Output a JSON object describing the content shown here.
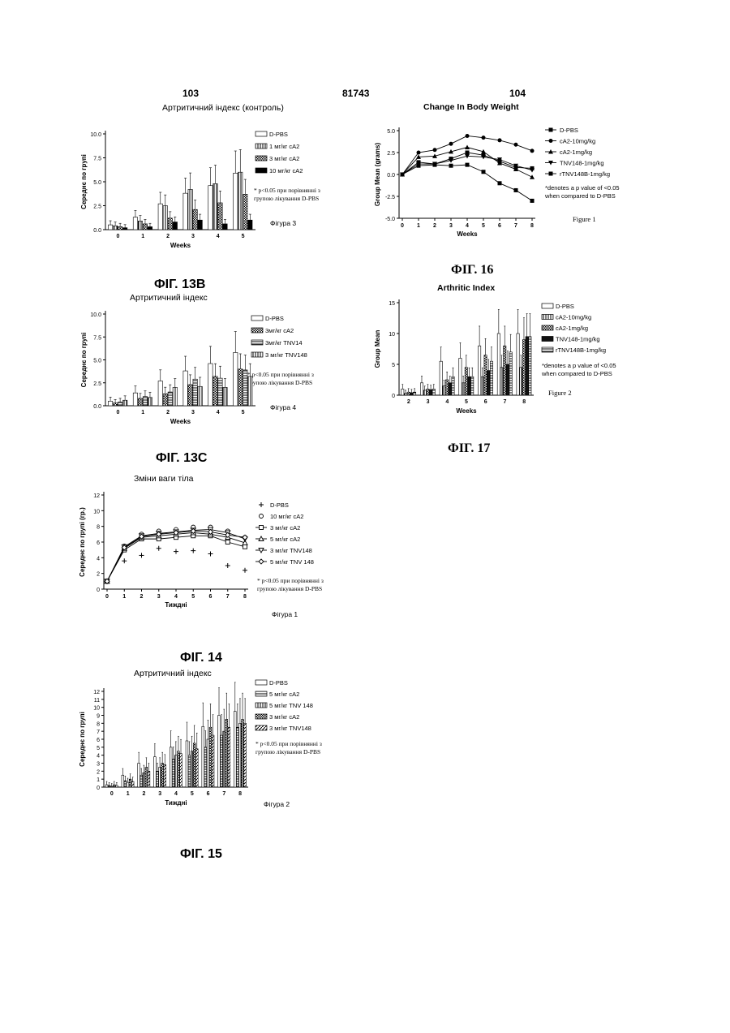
{
  "page": {
    "left_number": "103",
    "center_number": "81743",
    "right_number": "104"
  },
  "figures": [
    {
      "id": "fig13b",
      "caption": "ФІГ. 13B",
      "title": "Артритичний індекс (контроль)",
      "sub_label": "Фігура 3",
      "note": [
        "* p<0.05 при порівнянні з",
        "групою лікування D-PBS"
      ],
      "chart_data": {
        "type": "bar",
        "title": "Артритичний індекс (контроль)",
        "xlabel": "Weeks",
        "ylabel": "Середнє по групі",
        "ylim": [
          0,
          10
        ],
        "yticks": [
          "0.0",
          "2.5",
          "5.0",
          "7.5",
          "10.0"
        ],
        "categories": [
          "0",
          "1",
          "2",
          "3",
          "4",
          "5"
        ],
        "series": [
          {
            "name": "D-PBS",
            "values": [
              0.5,
              1.3,
              2.7,
              3.8,
              4.6,
              5.9
            ]
          },
          {
            "name": "1 мг/кг cA2",
            "values": [
              0.4,
              0.9,
              2.5,
              4.2,
              4.8,
              6.0
            ]
          },
          {
            "name": "3 мг/кг cA2",
            "values": [
              0.3,
              0.6,
              1.2,
              2.1,
              2.8,
              3.7
            ]
          },
          {
            "name": "10 мг/кг cA2",
            "values": [
              0.2,
              0.3,
              0.8,
              1.0,
              0.6,
              1.0
            ]
          }
        ]
      }
    },
    {
      "id": "fig13c",
      "caption": "ФІГ. 13C",
      "title": "Артритичний індекс",
      "sub_label": "Фігура 4",
      "note": [
        "* p<0.05 при порівнянні з",
        "групою лікування D-PBS"
      ],
      "chart_data": {
        "type": "bar",
        "title": "Артритичний індекс",
        "xlabel": "Weeks",
        "ylabel": "Середнє по групі",
        "ylim": [
          0,
          10
        ],
        "yticks": [
          "0.0",
          "2.5",
          "5.0",
          "7.5",
          "10.0"
        ],
        "categories": [
          "0",
          "1",
          "2",
          "3",
          "4",
          "5"
        ],
        "series": [
          {
            "name": "D-PBS",
            "values": [
              0.5,
              1.4,
              2.7,
              3.8,
              4.6,
              5.8
            ]
          },
          {
            "name": "3мг/кг cA2",
            "values": [
              0.3,
              0.8,
              1.3,
              2.3,
              3.2,
              4.0
            ]
          },
          {
            "name": "3мг/кг TNV14",
            "values": [
              0.4,
              1.0,
              1.5,
              2.9,
              3.0,
              3.9
            ]
          },
          {
            "name": "3 мг/кг TNV148",
            "values": [
              0.6,
              0.9,
              2.0,
              2.1,
              2.0,
              3.2
            ]
          }
        ]
      }
    },
    {
      "id": "fig14",
      "caption": "ФІГ. 14",
      "title": "Зміни ваги тіла",
      "sub_label": "Фігура 1",
      "note": [
        "* p<0.05 при порівнянні з",
        "групою лікування D-PBS"
      ],
      "chart_data": {
        "type": "line",
        "title": "Зміни ваги тіла",
        "xlabel": "Тиждні",
        "ylabel": "Середнє по групі (гр.)",
        "ylim": [
          0,
          12
        ],
        "yticks": [
          "0",
          "2",
          "4",
          "6",
          "8",
          "10",
          "12"
        ],
        "x": [
          0,
          1,
          2,
          3,
          4,
          5,
          6,
          7,
          8
        ],
        "series": [
          {
            "name": "D-PBS",
            "values": [
              1.0,
              3.6,
              4.3,
              5.2,
              4.8,
              4.9,
              4.5,
              3.0,
              2.4
            ]
          },
          {
            "name": "10 мг/кг cA2",
            "values": [
              1.0,
              5.5,
              7.0,
              7.4,
              7.6,
              7.9,
              7.9,
              7.4,
              6.6
            ]
          },
          {
            "name": "3 мг/кг cA2",
            "values": [
              1.0,
              5.0,
              6.4,
              6.4,
              6.6,
              6.8,
              6.8,
              6.0,
              5.4
            ]
          },
          {
            "name": "5 мг/кг cA2",
            "values": [
              1.0,
              5.2,
              6.6,
              6.8,
              7.0,
              7.2,
              7.0,
              6.6,
              5.9
            ]
          },
          {
            "name": "3 мг/кг TNV148",
            "values": [
              1.0,
              5.4,
              6.8,
              7.1,
              7.3,
              7.5,
              7.6,
              7.2,
              6.4
            ]
          },
          {
            "name": "5 мг/кг TNV 148",
            "values": [
              1.0,
              5.3,
              6.7,
              7.0,
              7.2,
              7.4,
              7.3,
              6.9,
              6.6
            ]
          }
        ]
      }
    },
    {
      "id": "fig15",
      "caption": "ФІГ. 15",
      "title": "Артритичний індекс",
      "sub_label": "Фігура 2",
      "note": [
        "* p<0.05 при порівнянні з",
        "групою лікування D-PBS"
      ],
      "chart_data": {
        "type": "bar",
        "title": "Артритичний індекс",
        "xlabel": "Тиждні",
        "ylabel": "Середнє по групі",
        "ylim": [
          0,
          12
        ],
        "yticks": [
          "0",
          "1",
          "2",
          "3",
          "4",
          "5",
          "6",
          "7",
          "8",
          "9",
          "10",
          "11",
          "12"
        ],
        "categories": [
          "0",
          "1",
          "2",
          "3",
          "4",
          "5",
          "6",
          "7",
          "8"
        ],
        "series": [
          {
            "name": "D-PBS",
            "values": [
              0.3,
              1.5,
              3.0,
              3.8,
              5.0,
              5.8,
              7.6,
              9.0,
              9.5
            ]
          },
          {
            "name": "5 мг/кг cA2",
            "values": [
              0.2,
              0.8,
              1.5,
              2.0,
              3.5,
              4.0,
              5.0,
              6.5,
              7.5
            ]
          },
          {
            "name": "5 мг/кг TNV 148",
            "values": [
              0.1,
              0.6,
              1.8,
              2.5,
              4.0,
              4.5,
              6.0,
              7.0,
              8.0
            ]
          },
          {
            "name": "3 мг/кг cA2",
            "values": [
              0.3,
              1.0,
              2.5,
              3.0,
              4.5,
              5.5,
              7.5,
              8.5,
              8.5
            ]
          },
          {
            "name": "3 мг/кг TNV148",
            "values": [
              0.2,
              0.7,
              2.0,
              2.8,
              4.2,
              4.8,
              6.5,
              7.5,
              8.0
            ]
          }
        ]
      }
    },
    {
      "id": "fig16",
      "caption": "ФІГ. 16",
      "title": "Change In Body Weight",
      "sub_label": "Figure 1",
      "note": [
        "*denotes a p value of <0.05",
        "when compared to D-PBS"
      ],
      "chart_data": {
        "type": "line",
        "title": "Change In Body Weight",
        "xlabel": "Weeks",
        "ylabel": "Group Mean (grams)",
        "ylim": [
          -5,
          5
        ],
        "yticks": [
          "-5.0",
          "-2.5",
          "0.0",
          "2.5",
          "5.0"
        ],
        "x": [
          0,
          1,
          2,
          3,
          4,
          5,
          6,
          7,
          8
        ],
        "series": [
          {
            "name": "D-PBS",
            "values": [
              0.0,
              1.0,
              1.1,
              1.0,
              1.1,
              0.3,
              -1.0,
              -1.8,
              -3.0
            ]
          },
          {
            "name": "cA2-10mg/kg",
            "values": [
              0.0,
              2.5,
              2.8,
              3.5,
              4.4,
              4.2,
              3.9,
              3.4,
              2.7
            ]
          },
          {
            "name": "cA2-1mg/kg",
            "values": [
              0.0,
              2.0,
              2.1,
              2.6,
              3.1,
              2.6,
              1.3,
              0.6,
              -0.3
            ]
          },
          {
            "name": "TNV148-1mg/kg",
            "values": [
              0.0,
              1.2,
              1.2,
              1.6,
              2.1,
              2.0,
              1.7,
              1.0,
              0.5
            ]
          },
          {
            "name": "rTNV148B-1mg/kg",
            "values": [
              0.0,
              1.4,
              1.2,
              1.8,
              2.5,
              2.2,
              1.5,
              0.8,
              0.7
            ]
          }
        ]
      }
    },
    {
      "id": "fig17",
      "caption": "ФІГ. 17",
      "title": "Arthritic Index",
      "sub_label": "Figure 2",
      "note": [
        "*denotes a p value of <0.05",
        "when compared to D-PBS"
      ],
      "chart_data": {
        "type": "bar",
        "title": "Arthritic Index",
        "xlabel": "Weeks",
        "ylabel": "Group Mean",
        "ylim": [
          0,
          15
        ],
        "yticks": [
          "0",
          "5",
          "10",
          "15"
        ],
        "categories": [
          "2",
          "3",
          "4",
          "5",
          "6",
          "7",
          "8"
        ],
        "series": [
          {
            "name": "D-PBS",
            "values": [
              1.0,
              2.0,
              5.5,
              6.0,
              8.0,
              10.0,
              10.0
            ]
          },
          {
            "name": "cA2-10mg/kg",
            "values": [
              0.3,
              0.8,
              1.5,
              2.0,
              3.0,
              4.5,
              4.5
            ]
          },
          {
            "name": "cA2-1mg/kg",
            "values": [
              0.5,
              1.0,
              2.5,
              4.5,
              6.5,
              8.0,
              9.0
            ]
          },
          {
            "name": "TNV148-1mg/kg",
            "values": [
              0.4,
              0.9,
              2.0,
              3.0,
              4.0,
              5.0,
              9.5
            ]
          },
          {
            "name": "rTNV148B-1mg/kg",
            "values": [
              0.5,
              1.0,
              3.0,
              3.0,
              5.5,
              7.0,
              9.5
            ]
          }
        ]
      }
    }
  ]
}
